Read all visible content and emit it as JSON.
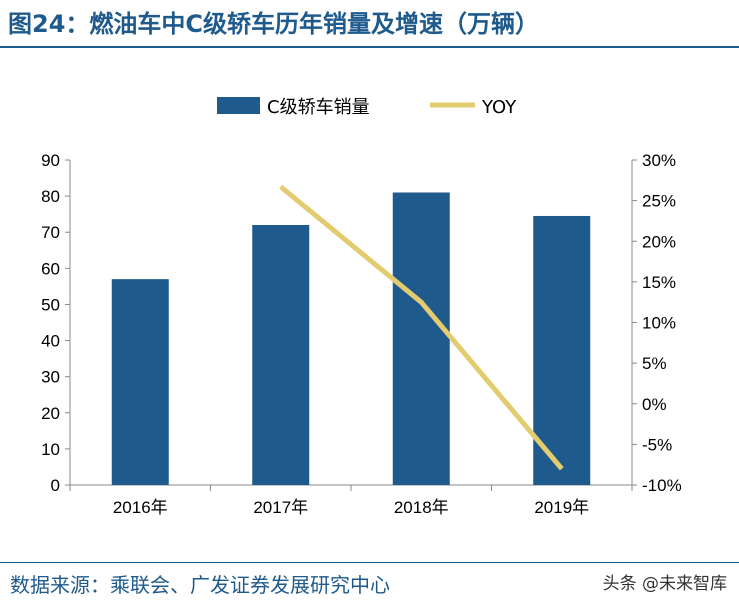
{
  "header": {
    "title": "图24：燃油车中C级轿车历年销量及增速（万辆）"
  },
  "footer": {
    "source": "数据来源：乘联会、广发证券发展研究中心",
    "watermark": "头条 @未来智库"
  },
  "colors": {
    "bar": "#1f5a8c",
    "line": "#e3cc6f",
    "title": "#1f5a8c"
  },
  "chart_data": {
    "type": "bar",
    "categories": [
      "2016年",
      "2017年",
      "2018年",
      "2019年"
    ],
    "series": [
      {
        "name": "C级轿车销量",
        "type": "bar",
        "axis": "left",
        "values": [
          57,
          72,
          81,
          74.5
        ]
      },
      {
        "name": "YOY",
        "type": "line",
        "axis": "right",
        "values": [
          null,
          0.267,
          0.125,
          -0.08
        ]
      }
    ],
    "y_left": {
      "min": 0,
      "max": 90,
      "step": 10,
      "ticks": [
        "0",
        "10",
        "20",
        "30",
        "40",
        "50",
        "60",
        "70",
        "80",
        "90"
      ]
    },
    "y_right": {
      "min": -0.1,
      "max": 0.3,
      "step": 0.05,
      "ticks": [
        "-10%",
        "-5%",
        "0%",
        "5%",
        "10%",
        "15%",
        "20%",
        "25%",
        "30%"
      ]
    },
    "legend": {
      "position": "top-center"
    },
    "grid": false
  }
}
